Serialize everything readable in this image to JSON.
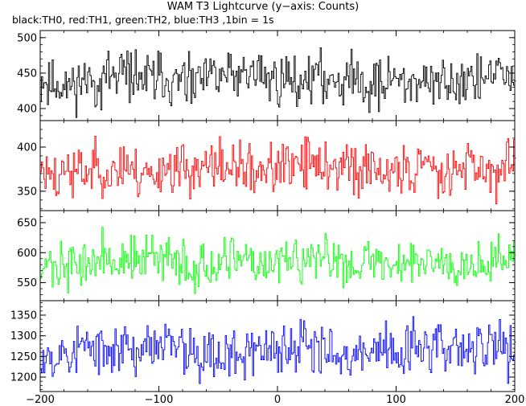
{
  "title": "WAM T3 Lightcurve (y−axis: Counts)",
  "subtitle": "black:TH0, red:TH1, green:TH2, blue:TH3 ,1bin = 1s",
  "chart_data": {
    "type": "line",
    "x_range": [
      -200,
      200
    ],
    "x_ticks": [
      -200,
      -100,
      0,
      100,
      200
    ],
    "grid": false,
    "panels": [
      {
        "series": "TH0",
        "color": "#000000",
        "ylim": [
          383,
          510
        ],
        "yticks": [
          400,
          450,
          500
        ],
        "mean": 440,
        "amplitude": 28,
        "seed": 11
      },
      {
        "series": "TH1",
        "color": "#ff0000",
        "ylim": [
          328,
          430
        ],
        "yticks": [
          350,
          400
        ],
        "mean": 375,
        "amplitude": 23,
        "seed": 23
      },
      {
        "series": "TH2",
        "color": "#00ff00",
        "ylim": [
          520,
          670
        ],
        "yticks": [
          550,
          600,
          650
        ],
        "mean": 585,
        "amplitude": 30,
        "seed": 37
      },
      {
        "series": "TH3",
        "color": "#0000ff",
        "ylim": [
          1165,
          1385
        ],
        "yticks": [
          1200,
          1250,
          1300,
          1350
        ],
        "mean": 1265,
        "amplitude": 50,
        "seed": 53
      }
    ]
  }
}
